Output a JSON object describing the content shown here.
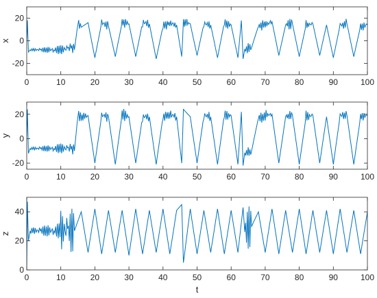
{
  "chart_data": [
    {
      "type": "line",
      "ylabel": "x",
      "xlabel": "",
      "xlim": [
        0,
        100
      ],
      "ylim": [
        -30,
        30
      ],
      "xticks": [
        0,
        10,
        20,
        30,
        40,
        50,
        60,
        70,
        80,
        90,
        100
      ],
      "yticks": [
        -20,
        0,
        20
      ],
      "color": "#0072BD",
      "grid": false,
      "series": [
        {
          "x": [
            0,
            0.2,
            0.5,
            1,
            2,
            4,
            6,
            8,
            10,
            12,
            13,
            14,
            15,
            16,
            18,
            20,
            22,
            24,
            26,
            28,
            30,
            32,
            34,
            36,
            38,
            40,
            42,
            44,
            45.5,
            46,
            48,
            50,
            52,
            54,
            56,
            58,
            60,
            62,
            63,
            63.5,
            64,
            66,
            68,
            70,
            72,
            74,
            76,
            78,
            80,
            82,
            84,
            86,
            88,
            90,
            92,
            94,
            96,
            98,
            100
          ],
          "y": [
            1,
            18,
            -10,
            -8,
            -8,
            -8,
            -8,
            -8,
            -8,
            -7,
            -6,
            -8,
            15,
            12,
            16,
            -15,
            16,
            13,
            -14,
            16,
            15,
            -14,
            16,
            15,
            -16,
            13,
            16,
            14,
            -14,
            16,
            15,
            -13,
            15,
            14,
            -15,
            16,
            14,
            -15,
            18,
            -16,
            -8,
            -6,
            13,
            14,
            17,
            -13,
            14,
            15,
            -14,
            14,
            15,
            -13,
            14,
            -15,
            14,
            15,
            -14,
            13,
            14
          ]
        }
      ]
    },
    {
      "type": "line",
      "ylabel": "y",
      "xlabel": "",
      "xlim": [
        0,
        100
      ],
      "ylim": [
        -25,
        30
      ],
      "xticks": [
        0,
        10,
        20,
        30,
        40,
        50,
        60,
        70,
        80,
        90,
        100
      ],
      "yticks": [
        -20,
        0,
        20
      ],
      "color": "#0072BD",
      "grid": false,
      "series": [
        {
          "x": [
            0,
            0.2,
            0.5,
            1,
            2,
            4,
            6,
            8,
            10,
            12,
            13,
            14,
            15,
            16,
            18,
            20,
            22,
            24,
            26,
            28,
            30,
            32,
            34,
            36,
            38,
            40,
            42,
            44,
            45.5,
            46,
            48,
            50,
            52,
            54,
            56,
            58,
            60,
            62,
            63,
            63.5,
            64,
            66,
            68,
            70,
            72,
            74,
            76,
            78,
            80,
            82,
            84,
            86,
            88,
            90,
            92,
            94,
            96,
            98,
            100
          ],
          "y": [
            2,
            24,
            -12,
            -8,
            -8,
            -8,
            -8,
            -8,
            -8,
            -8,
            -8,
            -10,
            19,
            17,
            19,
            -20,
            19,
            18,
            -21,
            20,
            18,
            -20,
            18,
            18,
            -21,
            18,
            20,
            18,
            -20,
            24,
            18,
            -20,
            19,
            18,
            -21,
            20,
            19,
            -21,
            22,
            -22,
            -12,
            -10,
            17,
            19,
            20,
            -20,
            18,
            19,
            -21,
            18,
            19,
            -20,
            18,
            -21,
            19,
            19,
            -21,
            18,
            19
          ]
        }
      ]
    },
    {
      "type": "line",
      "ylabel": "z",
      "xlabel": "t",
      "xlim": [
        0,
        100
      ],
      "ylim": [
        0,
        50
      ],
      "xticks": [
        0,
        10,
        20,
        30,
        40,
        50,
        60,
        70,
        80,
        90,
        100
      ],
      "yticks": [
        0,
        20,
        40
      ],
      "color": "#0072BD",
      "grid": false,
      "series": [
        {
          "x": [
            0,
            0.2,
            0.5,
            1,
            2,
            4,
            6,
            8,
            10,
            12,
            14,
            16,
            18,
            20,
            22,
            24,
            26,
            28,
            30,
            32,
            34,
            36,
            38,
            40,
            42,
            44,
            45.5,
            46,
            48,
            50,
            52,
            54,
            56,
            58,
            60,
            62,
            63.5,
            64,
            66,
            68,
            70,
            72,
            74,
            76,
            78,
            80,
            82,
            84,
            86,
            88,
            90,
            92,
            94,
            96,
            98,
            100
          ],
          "y": [
            1,
            47,
            20,
            27,
            27,
            27,
            27,
            27,
            27,
            27,
            27,
            40,
            12,
            42,
            11,
            41,
            12,
            41,
            10,
            42,
            11,
            41,
            12,
            42,
            11,
            41,
            45,
            5,
            42,
            11,
            41,
            12,
            42,
            11,
            41,
            12,
            43,
            27,
            30,
            40,
            12,
            42,
            11,
            41,
            12,
            42,
            11,
            41,
            12,
            41,
            11,
            42,
            12,
            41,
            11,
            40
          ]
        }
      ]
    }
  ]
}
